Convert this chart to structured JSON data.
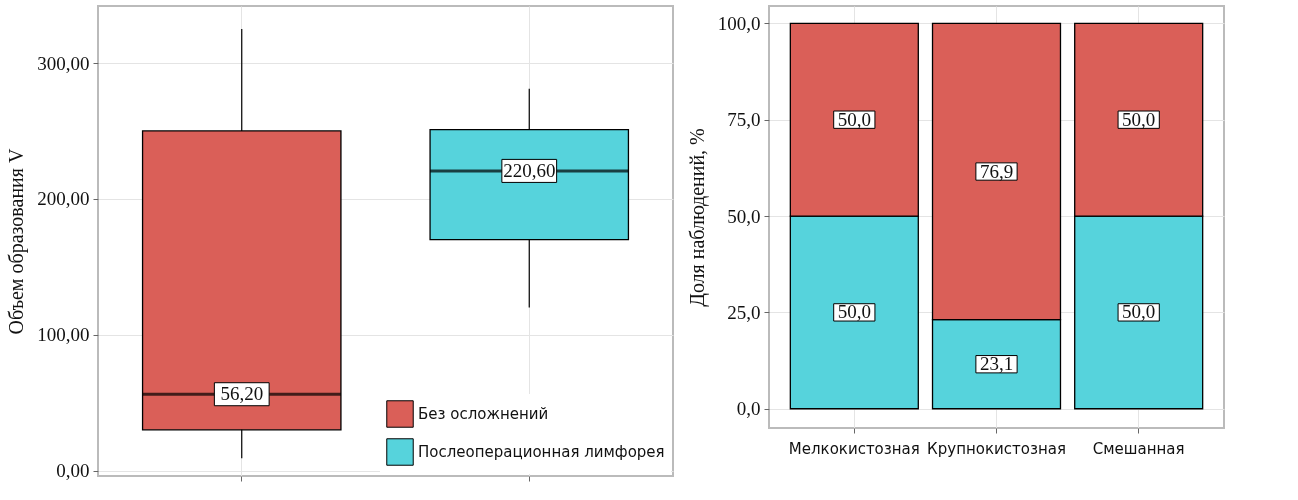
{
  "chart_data": [
    {
      "type": "box",
      "ylabel": "Объем образования V",
      "categories": [
        null,
        null
      ],
      "ylim": [
        -4,
        342
      ],
      "yticks": [
        {
          "value": 0,
          "label": "0,00"
        },
        {
          "value": 100,
          "label": "100,00"
        },
        {
          "value": 200,
          "label": "200,00"
        },
        {
          "value": 300,
          "label": "300,00"
        }
      ],
      "grid": true,
      "legend": "bottom right",
      "series": [
        {
          "name": "Без осложнений",
          "color": "#da5f58",
          "boxes": [
            {
              "low": 9,
              "q1": 30,
              "median": 56.2,
              "q3": 250,
              "high": 325
            },
            null
          ]
        },
        {
          "name": "Послеоперационная лимфорея",
          "color": "#56d3dc",
          "boxes": [
            null,
            {
              "low": 120,
              "q1": 170,
              "median": 220.6,
              "q3": 251,
              "high": 281
            }
          ]
        }
      ],
      "annotations": [
        {
          "text": "56,20",
          "y": 56.2
        },
        {
          "text": "220,60",
          "y": 220.6
        }
      ]
    },
    {
      "type": "bar",
      "stacked": true,
      "ylabel": "Доля наблюдений, %",
      "categories": [
        "Мелкокистозная",
        "Крупнокистозная",
        "Смешанная"
      ],
      "ylim": [
        -5,
        104.5
      ],
      "yticks": [
        {
          "value": 0,
          "label": "0,0"
        },
        {
          "value": 25,
          "label": "25,0"
        },
        {
          "value": 50,
          "label": "50,0"
        },
        {
          "value": 75,
          "label": "75,0"
        },
        {
          "value": 100,
          "label": "100,0"
        }
      ],
      "grid": true,
      "series": [
        {
          "color": "#56d3dc",
          "values": [
            50,
            23.1,
            50
          ],
          "value_labels": [
            "50,0",
            "23,1",
            "50,0"
          ]
        },
        {
          "color": "#da5f58",
          "values": [
            50,
            76.9,
            50
          ],
          "value_labels": [
            "50,0",
            "76,9",
            "50,0"
          ]
        }
      ]
    }
  ]
}
